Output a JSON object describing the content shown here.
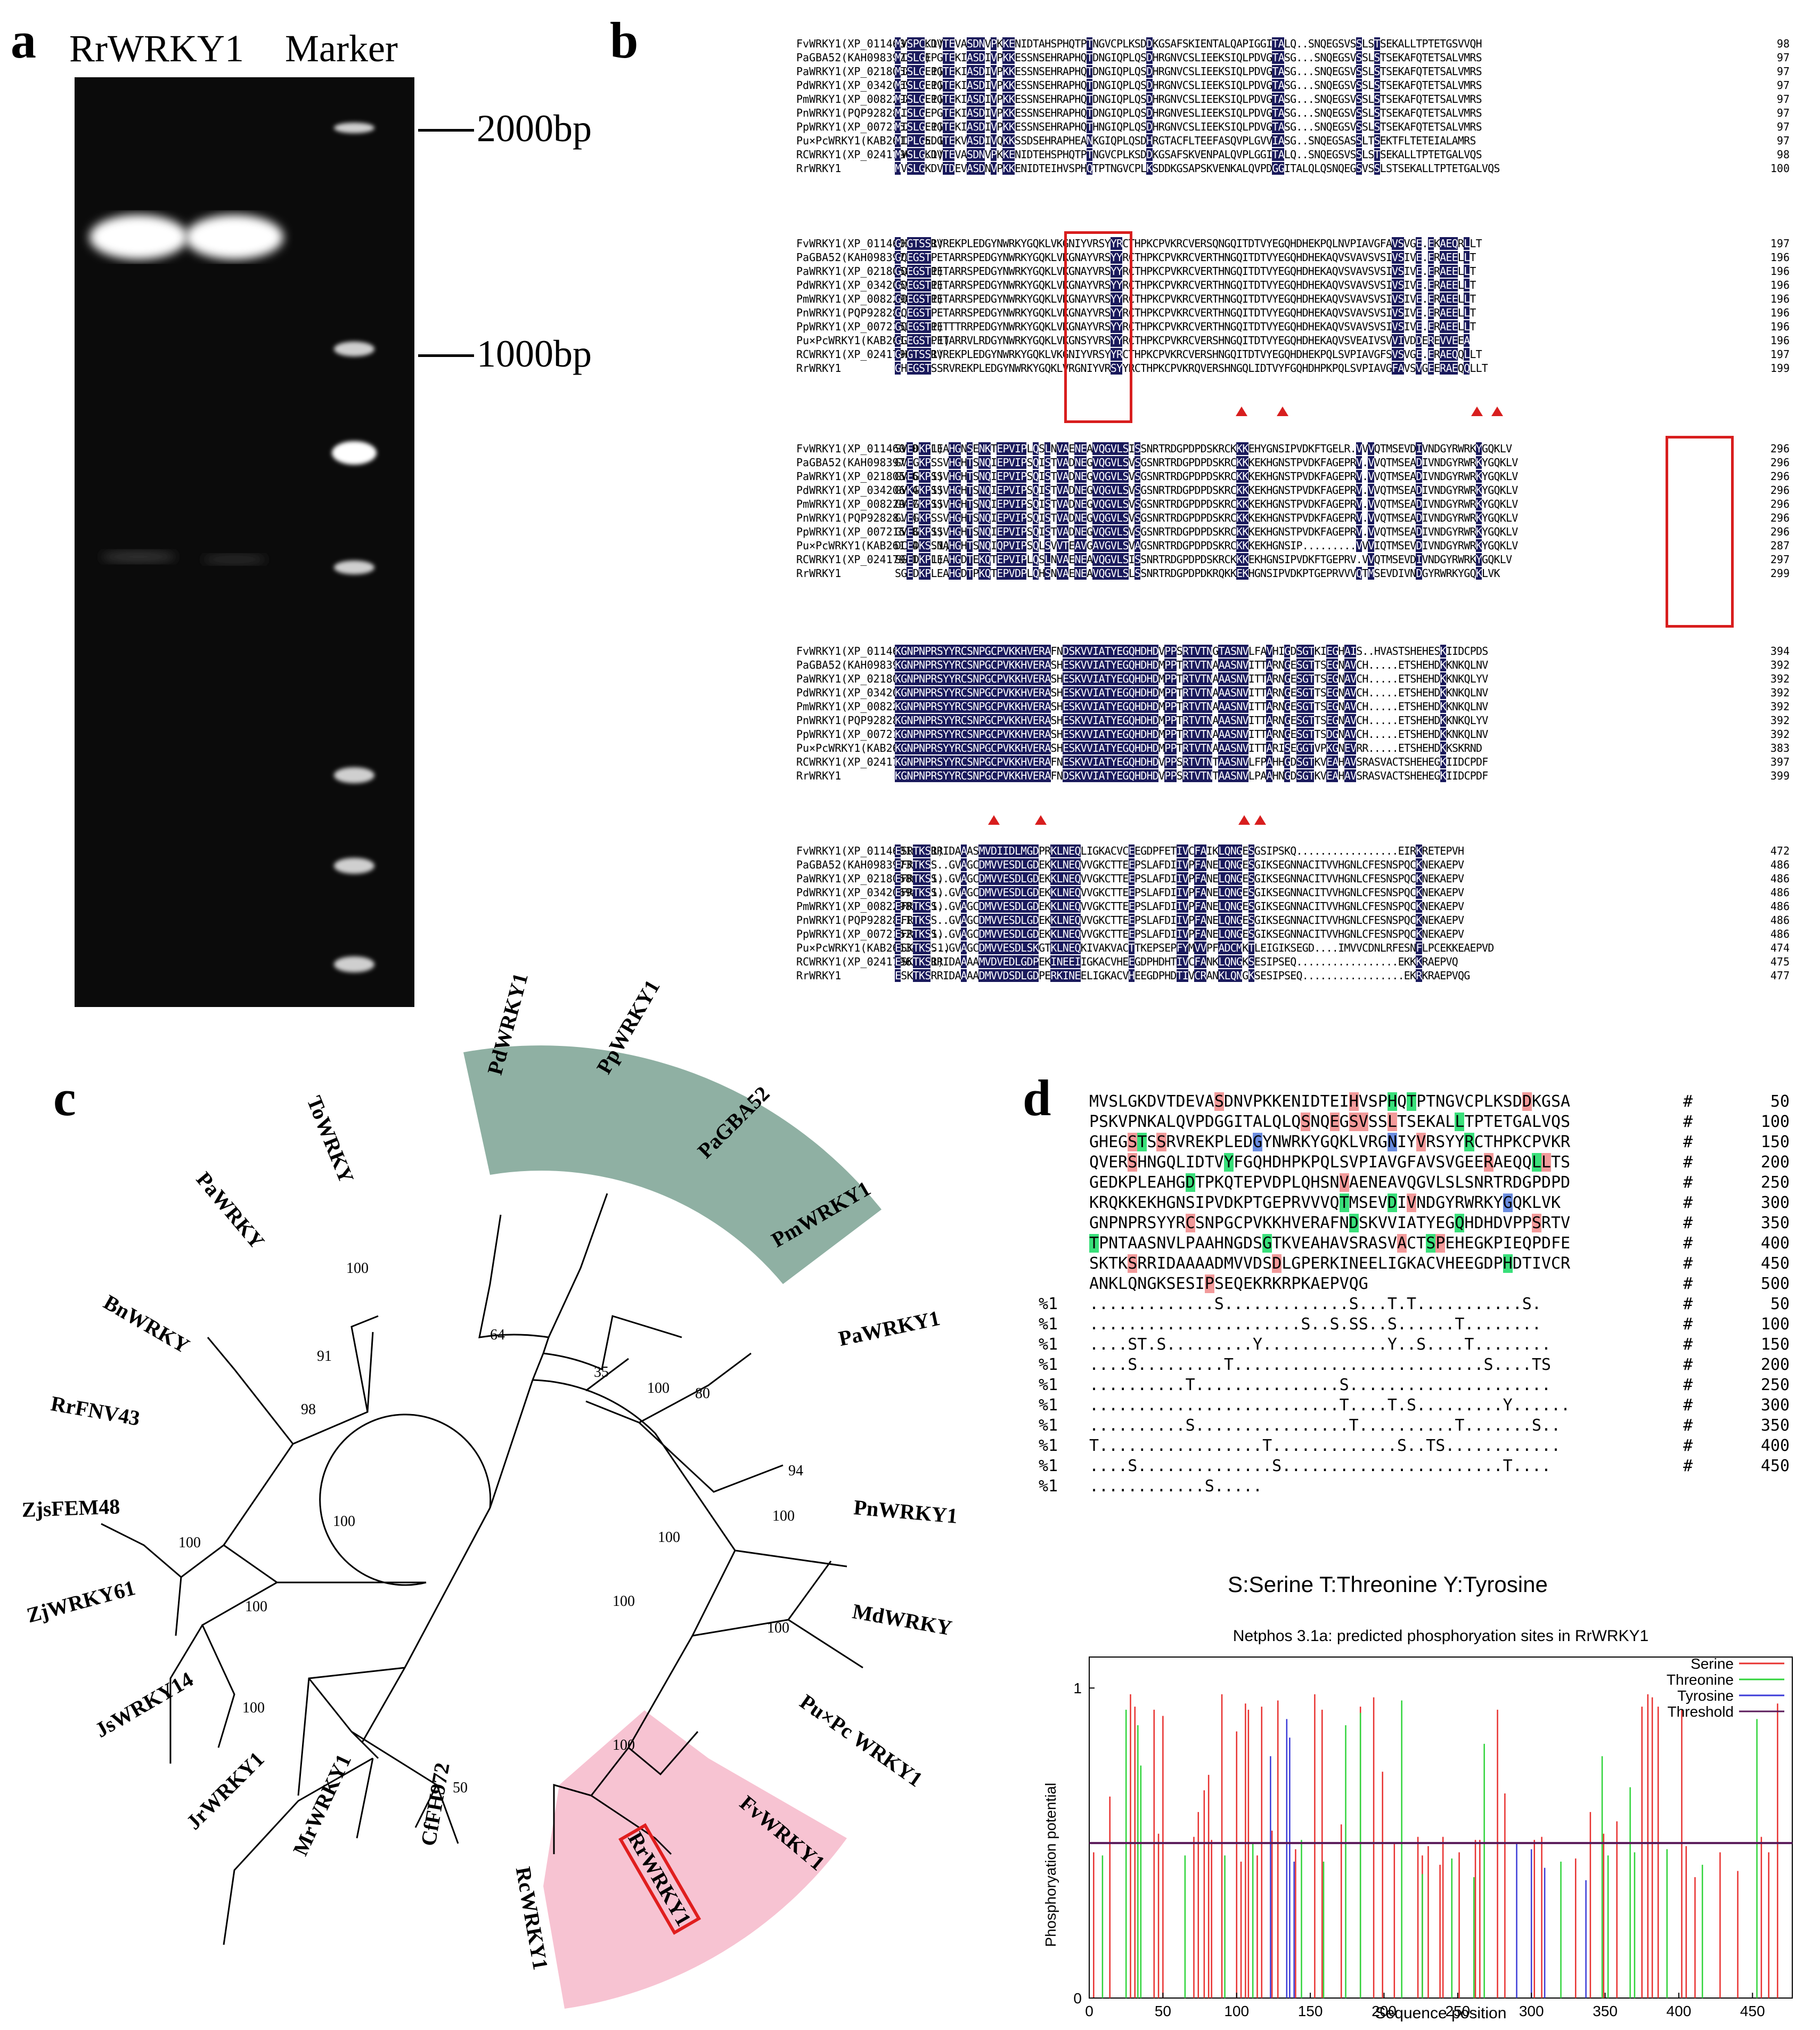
{
  "panels": {
    "a": "a",
    "b": "b",
    "c": "c",
    "d": "d"
  },
  "gel": {
    "lane1_label": "RrWRKY1",
    "lane2_label": "Marker",
    "marker_2000": "2000bp",
    "marker_1000": "1000bp"
  },
  "alignment": {
    "blocks": [
      {
        "rows": [
          {
            "name": "FvWRKY1(XP_011460107.1)",
            "seq": "MVSPCKDVTEVASDNVPKKENIDTAHSPHQTPTNGVCPLKSDDKGSAFSKIENTALQAPIGGITALQ..SNQEGSVSSLSTSEKALLTPTETGSVVQH",
            "num": "98"
          },
          {
            "name": "PaGBA52(KAH0983973.1)",
            "seq": "MISLGEPGTEKIASDIVPKKESSNSEHRAPHQTDNGIQPLQSDHRGNVCSLIEEKSIQLPDVGTASG...SNQEGSVSSLSTSEKAFQTETSALVMRS",
            "num": "97"
          },
          {
            "name": "PaWRKY1(XP_021805869.1)",
            "seq": "MISLGEPGTEKIASDIVPKKESSNSEHRAPHQTDNGIQPLQSDHRGNVCSLIEEKSIQLPDVGTASG...SNQEGSVSSLSTSEKAFQTETSALVMRS",
            "num": "97"
          },
          {
            "name": "PdWRKY1(XP_034206946.1)",
            "seq": "MISLGEPGTEKIASDIVPKKESSNSEHRAPHQTDNGIQPLQSDHRGNVCSLIEEKSIQLPDVGTASG...SNQEGSVSSLSTSEKAFQTETSALVMRS",
            "num": "97"
          },
          {
            "name": "PmWRKY1(XP_008229878.1)",
            "seq": "MISLGEPGTEKIASDIVPKKESSNSEHRAPHQTDNGIQPLQSDHRGNVCSLIEEKSIQLPDVGTASG...SNQEGSVSSLSTSEKAFQTETSALVMRS",
            "num": "97"
          },
          {
            "name": "PnWRKY1(PQP92828.1)",
            "seq": "MISLGEPGTEKIASDIVPKKESSNSEHRAPHQTDNGIQPLQSDHRGNVESLIEEKSIQLPDVGTASG...SNQEGSVSSLSTSEKAFQTETSALVMRS",
            "num": "97"
          },
          {
            "name": "PpWRKY1(XP_007215284.1)",
            "seq": "MISLGEPGTEKIASDIVPKKESSNSEHRAPHQTHNGIQPLQSDHRGNVCSLIEEKSIQLPDVGTASG...SNQEGSVSSLSTSEKAFQTETSALVMRS",
            "num": "97"
          },
          {
            "name": "Pu×PcWRKY1(KAB2613485.1)",
            "seq": "MIPLGEDGTEKVASDIVQKKSSDSEHRAPHEANKGIQPLQSDHRGTACFLTEEFASQVPLGVVIASG..SNQEGSASSLTSEKTFLTETEIALAMRS",
            "num": "97"
          },
          {
            "name": "RCWRKY1(XP_024179611.1)",
            "seq": "MVSLGKDVTEVASDNVPKKENIDTEHSPHQTPTNGVCPLKSDDKGSAFSKVENPALQVPLGGITALQ..SNQEGSVSSLSTSEKALLTPTETGALVQS",
            "num": "98"
          },
          {
            "name": "RrWRKY1",
            "seq": "MVSLGKDVTDEVASDNVPKKENIDTEIHVSPHQTPTNGVCPLKSDDKGSAPSKVENKALQVPDGGITALQLQSNQEGSVSSLSTSEKALLTPTETGALVQS",
            "num": "100"
          }
        ]
      },
      {
        "rows": [
          {
            "name": "FvWRKY1(XP_011460107.1)",
            "seq": "GHGTSSRVREKPLEDGYNWRKYGQKLVKGNIYVRSYYRCTHPKCPVKRCVERSQNGQITDTVYEGQHDHEKPQLNVPIAVGFAVSVGE.EKAEQRLLT",
            "num": "197"
          },
          {
            "name": "PaGBA52(KAH0983973.1)",
            "seq": "GQEGSTPETARRSPEDGYNWRKYGQKLVKGNAYVRSYYRCTHPKCPVKRCVERTHNGQITDTVYEGQHDHEKAQVSVAVSVSIVSIVE.ERAEELLT",
            "num": "196"
          },
          {
            "name": "PaWRKY1(XP_021805869.1)",
            "seq": "GQEGSTPETARRSPEDGYNWRKYGQKLVKGNAYVRSYYRCTHPKCPVKRCVERTHNGQITDTVYEGQHDHEKAQVSVAVSVSIVSIVE.ERAEELLT",
            "num": "196"
          },
          {
            "name": "PdWRKY1(XP_034206946.1)",
            "seq": "GQEGSTPETARRSPEDGYNWRKYGQKLVKGNAYVRSYYRCTHPKCPVKRCVERTHNGQITDTVYEGQHDHEKAQVSVAVSVSIVSIVE.ERAEELLT",
            "num": "196"
          },
          {
            "name": "PmWRKY1(XP_008229878.1)",
            "seq": "GQEGSTPETARRSPEDGYNWRKYGQKLVKGNAYVRSYYRCTHPKCPVKRCVERTHNGQITDTVYEGQHDHEKAQVSVAVSVSIVSIVE.ERAEELLT",
            "num": "196"
          },
          {
            "name": "PnWRKY1(PQP92828.1)",
            "seq": "GQEGSTPETARRSPEDGYNWRKYGQKLVKGNAYVRSYYRCTHPKCPVKRCVERTHNGQITDTVYEGQHDHEKAQVSVAVSVSIVSIVE.ERAEELLT",
            "num": "196"
          },
          {
            "name": "PpWRKY1(XP_007215284.1)",
            "seq": "GQEGSTPETTTRRPEDGYNWRKYGQKLVKGNAYVRSYYRCTHPKCPVKRCVERTHNGQITDTVYEGQHDHEKAQVSVAVSVSIVSIVE.ERAEELLT",
            "num": "196"
          },
          {
            "name": "Pu×PcWRKY1(KAB2613485.1)",
            "seq": "GGEGSTPETARRVLRDGYNWRKYGQKLVKGNSYVRSYYRCTHPKCPVKRCVERSHNGQITDTVYEGQHDHEKAQVSVEAIVSVVIVDDEREVVEEA",
            "num": "196"
          },
          {
            "name": "RCWRKY1(XP_024179611.1)",
            "seq": "GHGTSSRVREKPLEDGYNWRKYGQKLVKGNIYVRSYYRCTHPKCPVKRCVERSHNGQITDTVYEGQHDHEKPQLSVPIAVGFSVSVGE.ERAEQQLLT",
            "num": "197"
          },
          {
            "name": "RrWRKY1",
            "seq": "GHEGSTSSRVREKPLEDGYNWRKYGQKLVRGNIYVRSYYRCTHPKCPVKRQVERSHNGQLIDTVYFGQHDHPKPQLSVPIAVGFAVSVGEERAEQQLLT",
            "num": "199"
          }
        ]
      },
      {
        "rows": [
          {
            "name": "FvWRKY1(XP_011460107.1)",
            "seq": "SVEDKPLEAHGNSENKTEPVIPLQSLNVAENEAVQGVLSISSNRTRDGPDPDSKRCKKKEHYGNSIPVDKFTGELR.VVVQTMSEVDIVNDGYRWRKYGQKLV",
            "num": "296"
          },
          {
            "name": "PaGBA52(KAH0983973.1)",
            "seq": "GVEGKPSSVHGHTSNQIEPVIPSQISTVADNEGVQGVLSVSGSNRTRDGPDPDSKRCKKKEKHGNSTPVDKFAGEPRV.VVQTMSEADIVNDGYRWRKYGQKLV",
            "num": "296"
          },
          {
            "name": "PaWRKY1(XP_021805869.1)",
            "seq": "GVEGKPSSVHGHTSNQIEPVIPSQISTVADNEGVQGVLSVSGSNRTRDGPDPDSKRCKKKEKHGNSTPVDKFAGEPRV.VVQTMSEADIVNDGYRWRKYGQKLV",
            "num": "296"
          },
          {
            "name": "PdWRKY1(XP_034206946.1)",
            "seq": "GVKGKPSSVHGHTSNQIEPVIPSQISTVADNEGVQGVLSVSGSNRTRDGPDPDSKRCKKKEKHGNSTPVDKFAGEPRV.VVQTMSEADIVNDGYRWRKYGQKLV",
            "num": "296"
          },
          {
            "name": "PmWRKY1(XP_008229878.1)",
            "seq": "GVEGKPSSVHGHTSNQIEPVIPSQISTVADNEGVQGVLSVSGSNRTRDGPDPDSKRCKKKEKHGNSTPVDKFAGEPRV.VVQTMSEADIVNDGYRWRKYGQKLV",
            "num": "296"
          },
          {
            "name": "PnWRKY1(PQP92828.1)",
            "seq": "GVEGKPSSVHGHTSNQIEPVIPSQISTVADNEGVQGVLSVSGSNRTRDGPDPDSKRCKKKEKHGNSTPVDKFAGEPRV.VVQTMSEADIVNDGYRWRKYGQKLV",
            "num": "296"
          },
          {
            "name": "PpWRKY1(XP_007215284.1)",
            "seq": "GVEGKPSSVHGHTSNQIEPVIPSQISTVADNEGVQGVLSVSGSNRTRDGPDPDSKRCKKKEKHGNSTPVDKFAGEPRV.VVQTMSEADIVNDGYRWRKYGQKLV",
            "num": "296"
          },
          {
            "name": "Pu×PcWRKY1(KAB2613485.1)",
            "seq": "DCEDKSSNAHGHTSNQIQPVIPSQLSVVTEAVGAVGVLSVAGSNRTRDGPDPDSKRCKKKEKHGNSIP.........VVVIQTMSEVDIVNDGYRWRKYGQKLV",
            "num": "287"
          },
          {
            "name": "RCWRKY1(XP_024179611.1)",
            "seq": "SGEDKPLEAHGDTEKQTEPVIPLQSLNVAENEAVQGVLSISSNRTRDGPDPDSKRCKKKEKHGNSIPVDKFTGEPRV.VVQTMSEVDIVNDGYRWRKYGQKLV",
            "num": "297"
          },
          {
            "name": "RrWRKY1",
            "seq": "SGEDKPLEAHGDTPKQTEPVDPLQHSNVAENEAVQGVLSLSSNRTRDGPDPDKRQKKEKHGNSIPVDKPTGEPRVVVQTMSEVDIVNDGYRWRKYGQKLVK",
            "num": "299"
          }
        ]
      },
      {
        "rows": [
          {
            "name": "FvWRKY1(XP_011460107.1)",
            "seq": "KGNPNPRSYYRCSNPGCPVKKHVERAFNDSKVVIATYEGQHDHDVPPSRTVTNGTASNVLFAVHIGDSGTKIEGHAIS..HVASTSHEHESKIIDCPDS",
            "num": "394"
          },
          {
            "name": "PaGBA52(KAH0983973.1)",
            "seq": "KGNPNPRSYYRCSNPGCPVKKHVERASHESKVVIATYEGQHDHDMPPTRTVTNAAASNVITTARNGESGTTSEGNAVCH.....ETSHEHDKKNKQLNV",
            "num": "392"
          },
          {
            "name": "PaWRKY1(XP_021805869.1)",
            "seq": "KGNPNPRSYYRCSNPGCPVKKHVERASHESKVVIATYEGQHDHDMPPTRTVTNAAASNVITTARNGESGTTSEGNAVCH.....ETSHEHDKKNKQLYV",
            "num": "392"
          },
          {
            "name": "PdWRKY1(XP_034206946.1)",
            "seq": "KGNPNPRSYYRCSNPGCPVKKHVERASHESKVVIATYEGQHDHDMPPTRTVTNAAASNVITTARNGESGTTSEGNAVCH.....ETSHEHDKKNKQLNV",
            "num": "392"
          },
          {
            "name": "PmWRKY1(XP_008229878.1)",
            "seq": "KGNPNPRSYYRCSNPGCPVKKHVERASHESKVVIATYEGQHDHDMPPTRTVTNAAASNVITTARNGESGTTSEGNAVCH.....ETSHEHDKKNKQLNV",
            "num": "392"
          },
          {
            "name": "PnWRKY1(PQP92828.1)",
            "seq": "KGNPNPRSYYRCSNPGCPVKKHVERASHESKVVIATYEGQHDHDMPPTRTVTNAAASNVITTARNGESGTTSEGNAVCH.....ETSHEHDKKNKQLYV",
            "num": "392"
          },
          {
            "name": "PpWRKY1(XP_007215284.1)",
            "seq": "KGNPNPRSYYRCSNPGCPVKKHVERASHESKVVIATYEGQHDHDMPPTRTVTNAAASNVITTARNGESGTTSDGNAVCH.....ETSHEHDKKNKQLNV",
            "num": "392"
          },
          {
            "name": "Pu×PcWRKY1(KAB2613485.1)",
            "seq": "KGNPNPRSYYRCSNPGCPVKKHVERASHESKVVIATYEGQHDHDMPPTRTVTNAAASNVITTARISEGGTVPKGNEVRR.....ETSHEHDKKSKRND",
            "num": "383"
          },
          {
            "name": "RCWRKY1(XP_024179611.1)",
            "seq": "KGNPNPRSYYRCSNPGCPVKKHVERAFNESKVVIATYEGQHDHDVPPSRTVTNTAASNVLFPAHHGDSGTKVEAHAVSRASVACTSHEHEGKIIDCPDF",
            "num": "397"
          },
          {
            "name": "RrWRKY1",
            "seq": "KGNPNPRSYYRCSNPGCPVKKHVERAFNDSKVVIATYEGQHDHDVPPSRTVTNTAASNVLPAAHNGDSGTKVEAHAVSRASVACTSHEHEGKIIDCPDF",
            "num": "399"
          }
        ]
      },
      {
        "rows": [
          {
            "name": "FvWRKY1(XP_011460107.1)",
            "seq": "ESRTKSRRIDAAASMVDIIDLMGDPRKLNEQLIGKACVCEEGDPFETIVCFAIKLQNGESGSIPSKQ.................EIRKRETEPVH",
            "num": "472"
          },
          {
            "name": "PaGBA52(KAH0983973.1)",
            "seq": "EFRTKSS..GVAGCDMVVESDLGDEKKLNEQVVGKCTTEEPSLAFDIIVPFANELQNGESGIKSEGNNACITVVHGNLCFESNSPQCKNEKAEPV",
            "num": "486"
          },
          {
            "name": "PaWRKY1(XP_021805869.1)",
            "seq": "EFRTKSS..GVAGCDMVVESDLGDEKKLNEQVVGKCTTEEPSLAFDIIVPFANELQNGESGIKSEGNNACITVVHGNLCFESNSPQCKNEKAEPV",
            "num": "486"
          },
          {
            "name": "PdWRKY1(XP_034206946.1)",
            "seq": "EFRTKSS..GVAGCDMVVESDLGDEKKLNEQVVGKCTTEEPSLAFDIIVPFANELQNGESGIKSEGNNACITVVHGNLCFESNSPQCKNEKAEPV",
            "num": "486"
          },
          {
            "name": "PmWRKY1(XP_008229878.1)",
            "seq": "EFRTKSS..GVAGCDMVVESDLGDEKKLNEQVVGKCTTEEPSLAFDIIVPFANELQNGESGIKSEGNNACITVVHGNLCFESNSPQCKNEKAEPV",
            "num": "486"
          },
          {
            "name": "PnWRKY1(PQP92828.1)",
            "seq": "EFRTKSS..GVAGCDMVVESDLGDEKKLNEQVVGKCTTEEPSLAFDIIVPFANELQNGESGIKSEGNNACITVVHGNLCFESNSPQCKNEKAEPV",
            "num": "486"
          },
          {
            "name": "PpWRKY1(XP_007215284.1)",
            "seq": "EFRTKSS..GVAGCDMVVESDLGDEKKLNEQVVGKCTTEEPSLAFDIIVPFANELQNGESGIKSEGNNACITVVHGNLCFESNSPQCKNEKAEPV",
            "num": "486"
          },
          {
            "name": "Pu×PcWRKY1(KAB2613485.1)",
            "seq": "ESKTKSS..GVAGCDMVVESDLSKGTKLNEQKIVAKVACTTKEPSEPFYMVVPFADCMKTLEIGIKSEGD....IMVVCDNLRFESNFLPCEKKEAEPVD",
            "num": "474"
          },
          {
            "name": "RCWRKY1(XP_024179611.1)",
            "seq": "ESKTKSRRIDAAAAMVDVEDLGDPEKINEEIIGKACVHEEGDPHDHTIVCFANKLQNGKSESIPSEQ.................EKKKRAEPVQ",
            "num": "475"
          },
          {
            "name": "RrWRKY1",
            "seq": "ESKTKSRRIDAAAADMVVDSDLGDPERKINEELIGKACVHEEGDPHDTIVCRANKLQNGKSESIPSEQ.................EKRKRAEPVQG",
            "num": "477"
          }
        ]
      }
    ]
  },
  "tree": {
    "leaves": [
      "PdWRKY1",
      "PpWRKY1",
      "PaGBA52",
      "PmWRKY1",
      "PaWRKY1",
      "PnWRKY1",
      "MdWRKY",
      "Pu×Pc WRKY1",
      "FvWRKY1",
      "RrWRKY1",
      "RcWRKY1",
      "CfFH972",
      "MrWRKY1",
      "JrWRKY1",
      "JsWRKY14",
      "ZjWRKY61",
      "ZjsFEM48",
      "RrFNV43",
      "BnWRKY",
      "PaWRKY",
      "ToWRKY"
    ],
    "bootstraps": [
      "64",
      "35",
      "80",
      "100",
      "94",
      "100",
      "100",
      "100",
      "100",
      "100",
      "50",
      "100",
      "100",
      "100",
      "100",
      "98",
      "91",
      "100"
    ]
  },
  "netphos": {
    "seq_rows": [
      {
        "text": "MVSLGKDVTDEVASDNVPKKENIDTEIHVSPHQTPTNGVCPLKSDDKGSA",
        "num": "50"
      },
      {
        "text": "PSKVPNKALQVPDGGITALQLQSNQEGSVSSLTSEKALLTPTETGALVQS",
        "num": "100"
      },
      {
        "text": "GHEGSTSSRVREKPLEDGYNWRKYGQKLVRGNIYVRSYYRCTHPKCPVKR",
        "num": "150"
      },
      {
        "text": "QVERSHNGQLIDTVYFGQHDHPKPQLSVPIAVGFAVSVGEERAEQQLLTS",
        "num": "200"
      },
      {
        "text": "GEDKPLEAHGDTPKQTEPVDPLQHSNVAENEAVQGVLSLSNRTRDGPDPD",
        "num": "250"
      },
      {
        "text": "KRQKKEKHGNSIPVDKPTGEPRVVVQTMSEVDIVNDGYRWRKYGQKLVK",
        "num": "300"
      },
      {
        "text": "GNPNPRSYYRCSNPGCPVKKHVERAFNDSKVVIATYEGQHDHDVPPSRTV",
        "num": "350"
      },
      {
        "text": "TPNTAASNVLPAAHNGDSGTKVEAHAVSRASVACTSPEHEGKPIEQPDFE",
        "num": "400"
      },
      {
        "text": "SKTKSRRIDAAAADMVVDSDLGPERKINEELIGKACVHEEGDPHDTIVCR",
        "num": "450"
      },
      {
        "text": "ANKLQNGKSESIPSEQEKRKRPKAEPVQG",
        "num": "500"
      }
    ],
    "pct_rows": [
      {
        "prefix": "%1",
        "text": ".............S.............S...T.T...........S.",
        "num": "50"
      },
      {
        "prefix": "%1",
        "text": "......................S..S.SS..S......T........",
        "num": "100"
      },
      {
        "prefix": "%1",
        "text": "....ST.S.........Y.............Y..S....T........",
        "num": "150"
      },
      {
        "prefix": "%1",
        "text": "....S.........T..........................S....TS",
        "num": "200"
      },
      {
        "prefix": "%1",
        "text": "..........T...............S.....................",
        "num": "250"
      },
      {
        "prefix": "%1",
        "text": "..........................T....T.S.........Y......",
        "num": "300"
      },
      {
        "prefix": "%1",
        "text": "..........S................T..........T.......S..",
        "num": "350"
      },
      {
        "prefix": "%1",
        "text": "T.................T.............S..TS............",
        "num": "400"
      },
      {
        "prefix": "%1",
        "text": "....S..............S.......................T....",
        "num": "450"
      },
      {
        "prefix": "%1",
        "text": "............S.....",
        "num": ""
      }
    ],
    "hash": "#",
    "legend_text": "S:Serine  T:Threonine Y:Tyrosine"
  },
  "chart_data": {
    "type": "bar",
    "title": "Netphos 3.1a: predicted phosphoryation sites in RrWRKY1",
    "xlabel": "Sequence position",
    "ylabel": "Phosphoryation potential",
    "xlim": [
      0,
      477
    ],
    "ylim": [
      0,
      1.1
    ],
    "xticks": [
      "0",
      "50",
      "100",
      "150",
      "200",
      "250",
      "300",
      "350",
      "400",
      "450"
    ],
    "yticks": [
      "0",
      "1"
    ],
    "legend_position": "top-right",
    "threshold": 0.5,
    "series": [
      {
        "name": "Serine",
        "color": "#e8312f",
        "x": [
          3,
          14,
          28,
          31,
          44,
          47,
          50,
          71,
          74,
          78,
          81,
          83,
          90,
          100,
          103,
          106,
          108,
          114,
          117,
          124,
          128,
          140,
          153,
          158,
          171,
          184,
          193,
          199,
          207,
          223,
          226,
          230,
          238,
          240,
          251,
          262,
          265,
          277,
          282,
          302,
          307,
          330,
          340,
          349,
          358,
          375,
          379,
          382,
          386,
          392,
          402,
          405,
          411,
          428,
          440,
          456,
          461,
          467
        ],
        "values": [
          0.47,
          0.65,
          0.98,
          0.94,
          0.93,
          0.53,
          0.91,
          0.52,
          0.6,
          0.67,
          0.72,
          0.51,
          0.98,
          0.86,
          0.44,
          0.95,
          0.93,
          0.46,
          0.94,
          0.54,
          0.96,
          0.48,
          0.98,
          0.93,
          0.56,
          0.94,
          0.97,
          0.73,
          0.5,
          0.52,
          0.46,
          0.49,
          0.43,
          0.52,
          0.47,
          0.51,
          0.51,
          0.93,
          0.66,
          0.51,
          0.52,
          0.45,
          0.6,
          0.53,
          0.57,
          0.94,
          0.98,
          0.97,
          0.94,
          0.48,
          0.93,
          0.49,
          0.39,
          0.47,
          0.41,
          0.52,
          0.47,
          0.95
        ]
      },
      {
        "name": "Threonine",
        "color": "#2fd43a",
        "x": [
          9,
          25,
          33,
          35,
          65,
          92,
          111,
          144,
          159,
          174,
          184,
          212,
          226,
          246,
          261,
          268,
          320,
          348,
          352,
          367,
          370,
          392,
          416,
          453
        ],
        "values": [
          0.46,
          0.93,
          0.88,
          0.75,
          0.46,
          0.46,
          0.5,
          0.51,
          0.44,
          0.88,
          0.92,
          0.96,
          0.4,
          0.45,
          0.39,
          0.82,
          0.44,
          0.78,
          0.46,
          0.68,
          0.47,
          0.48,
          0.43,
          0.9
        ]
      },
      {
        "name": "Tyrosine",
        "color": "#3a3ad8",
        "x": [
          123,
          134,
          136,
          139,
          290,
          300,
          309,
          337
        ],
        "values": [
          0.78,
          0.9,
          0.84,
          0.44,
          0.5,
          0.48,
          0.42,
          0.38
        ]
      },
      {
        "name": "Threshold",
        "color": "#5a1a5a"
      }
    ]
  }
}
